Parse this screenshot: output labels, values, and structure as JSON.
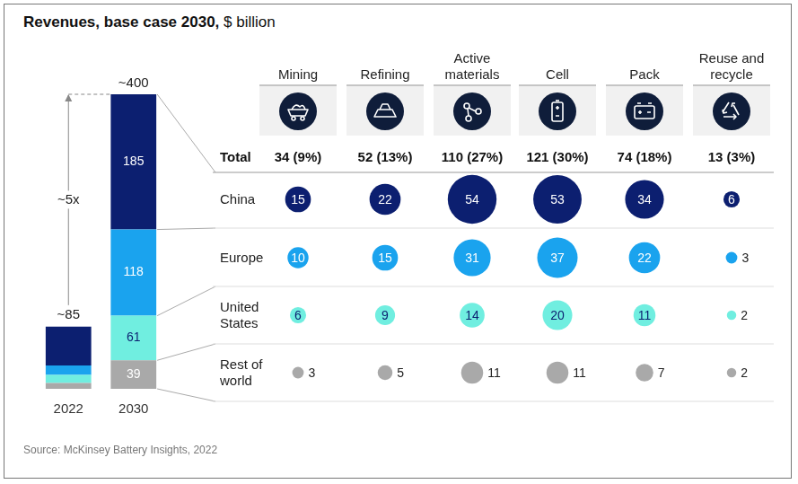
{
  "chart_data": {
    "type": "bar",
    "stacked": true,
    "title": "Revenues, base case 2030,",
    "subtitle": "$ billion",
    "categories": [
      "2022",
      "2030"
    ],
    "series": [
      {
        "name": "China",
        "color": "#0c1f70",
        "values": [
          53,
          185
        ],
        "value_labels": [
          null,
          "185"
        ]
      },
      {
        "name": "Europe",
        "color": "#1aa3ee",
        "values": [
          13,
          118
        ],
        "value_labels": [
          null,
          "118"
        ]
      },
      {
        "name": "United States",
        "color": "#70eee0",
        "values": [
          11,
          61
        ],
        "value_labels": [
          null,
          "61"
        ]
      },
      {
        "name": "Rest of world",
        "color": "#a9a9a9",
        "values": [
          8,
          39
        ],
        "value_labels": [
          null,
          "39"
        ]
      }
    ],
    "ylim": [
      0,
      403
    ],
    "tick_labels": "x",
    "grid": false,
    "data_labels": true,
    "annotations": [
      {
        "text": "~85",
        "category": "2022"
      },
      {
        "text": "~400",
        "category": "2030"
      },
      {
        "text": "~5x"
      }
    ]
  },
  "table": {
    "total_label": "Total",
    "columns": [
      {
        "header": "Mining",
        "total": "34 (9%)"
      },
      {
        "header": "Refining",
        "total": "52 (13%)"
      },
      {
        "header": "Active materials",
        "total": "110 (27%)"
      },
      {
        "header": "Cell",
        "total": "121 (30%)"
      },
      {
        "header": "Pack",
        "total": "74 (18%)"
      },
      {
        "header": "Reuse and recycle",
        "total": "13 (3%)"
      }
    ],
    "rows": [
      [
        15,
        22,
        54,
        53,
        34,
        6
      ],
      [
        10,
        15,
        31,
        37,
        22,
        3
      ],
      [
        6,
        9,
        14,
        20,
        11,
        2
      ],
      [
        3,
        5,
        11,
        11,
        7,
        2
      ]
    ]
  },
  "source": "Source: McKinsey Battery Insights, 2022"
}
